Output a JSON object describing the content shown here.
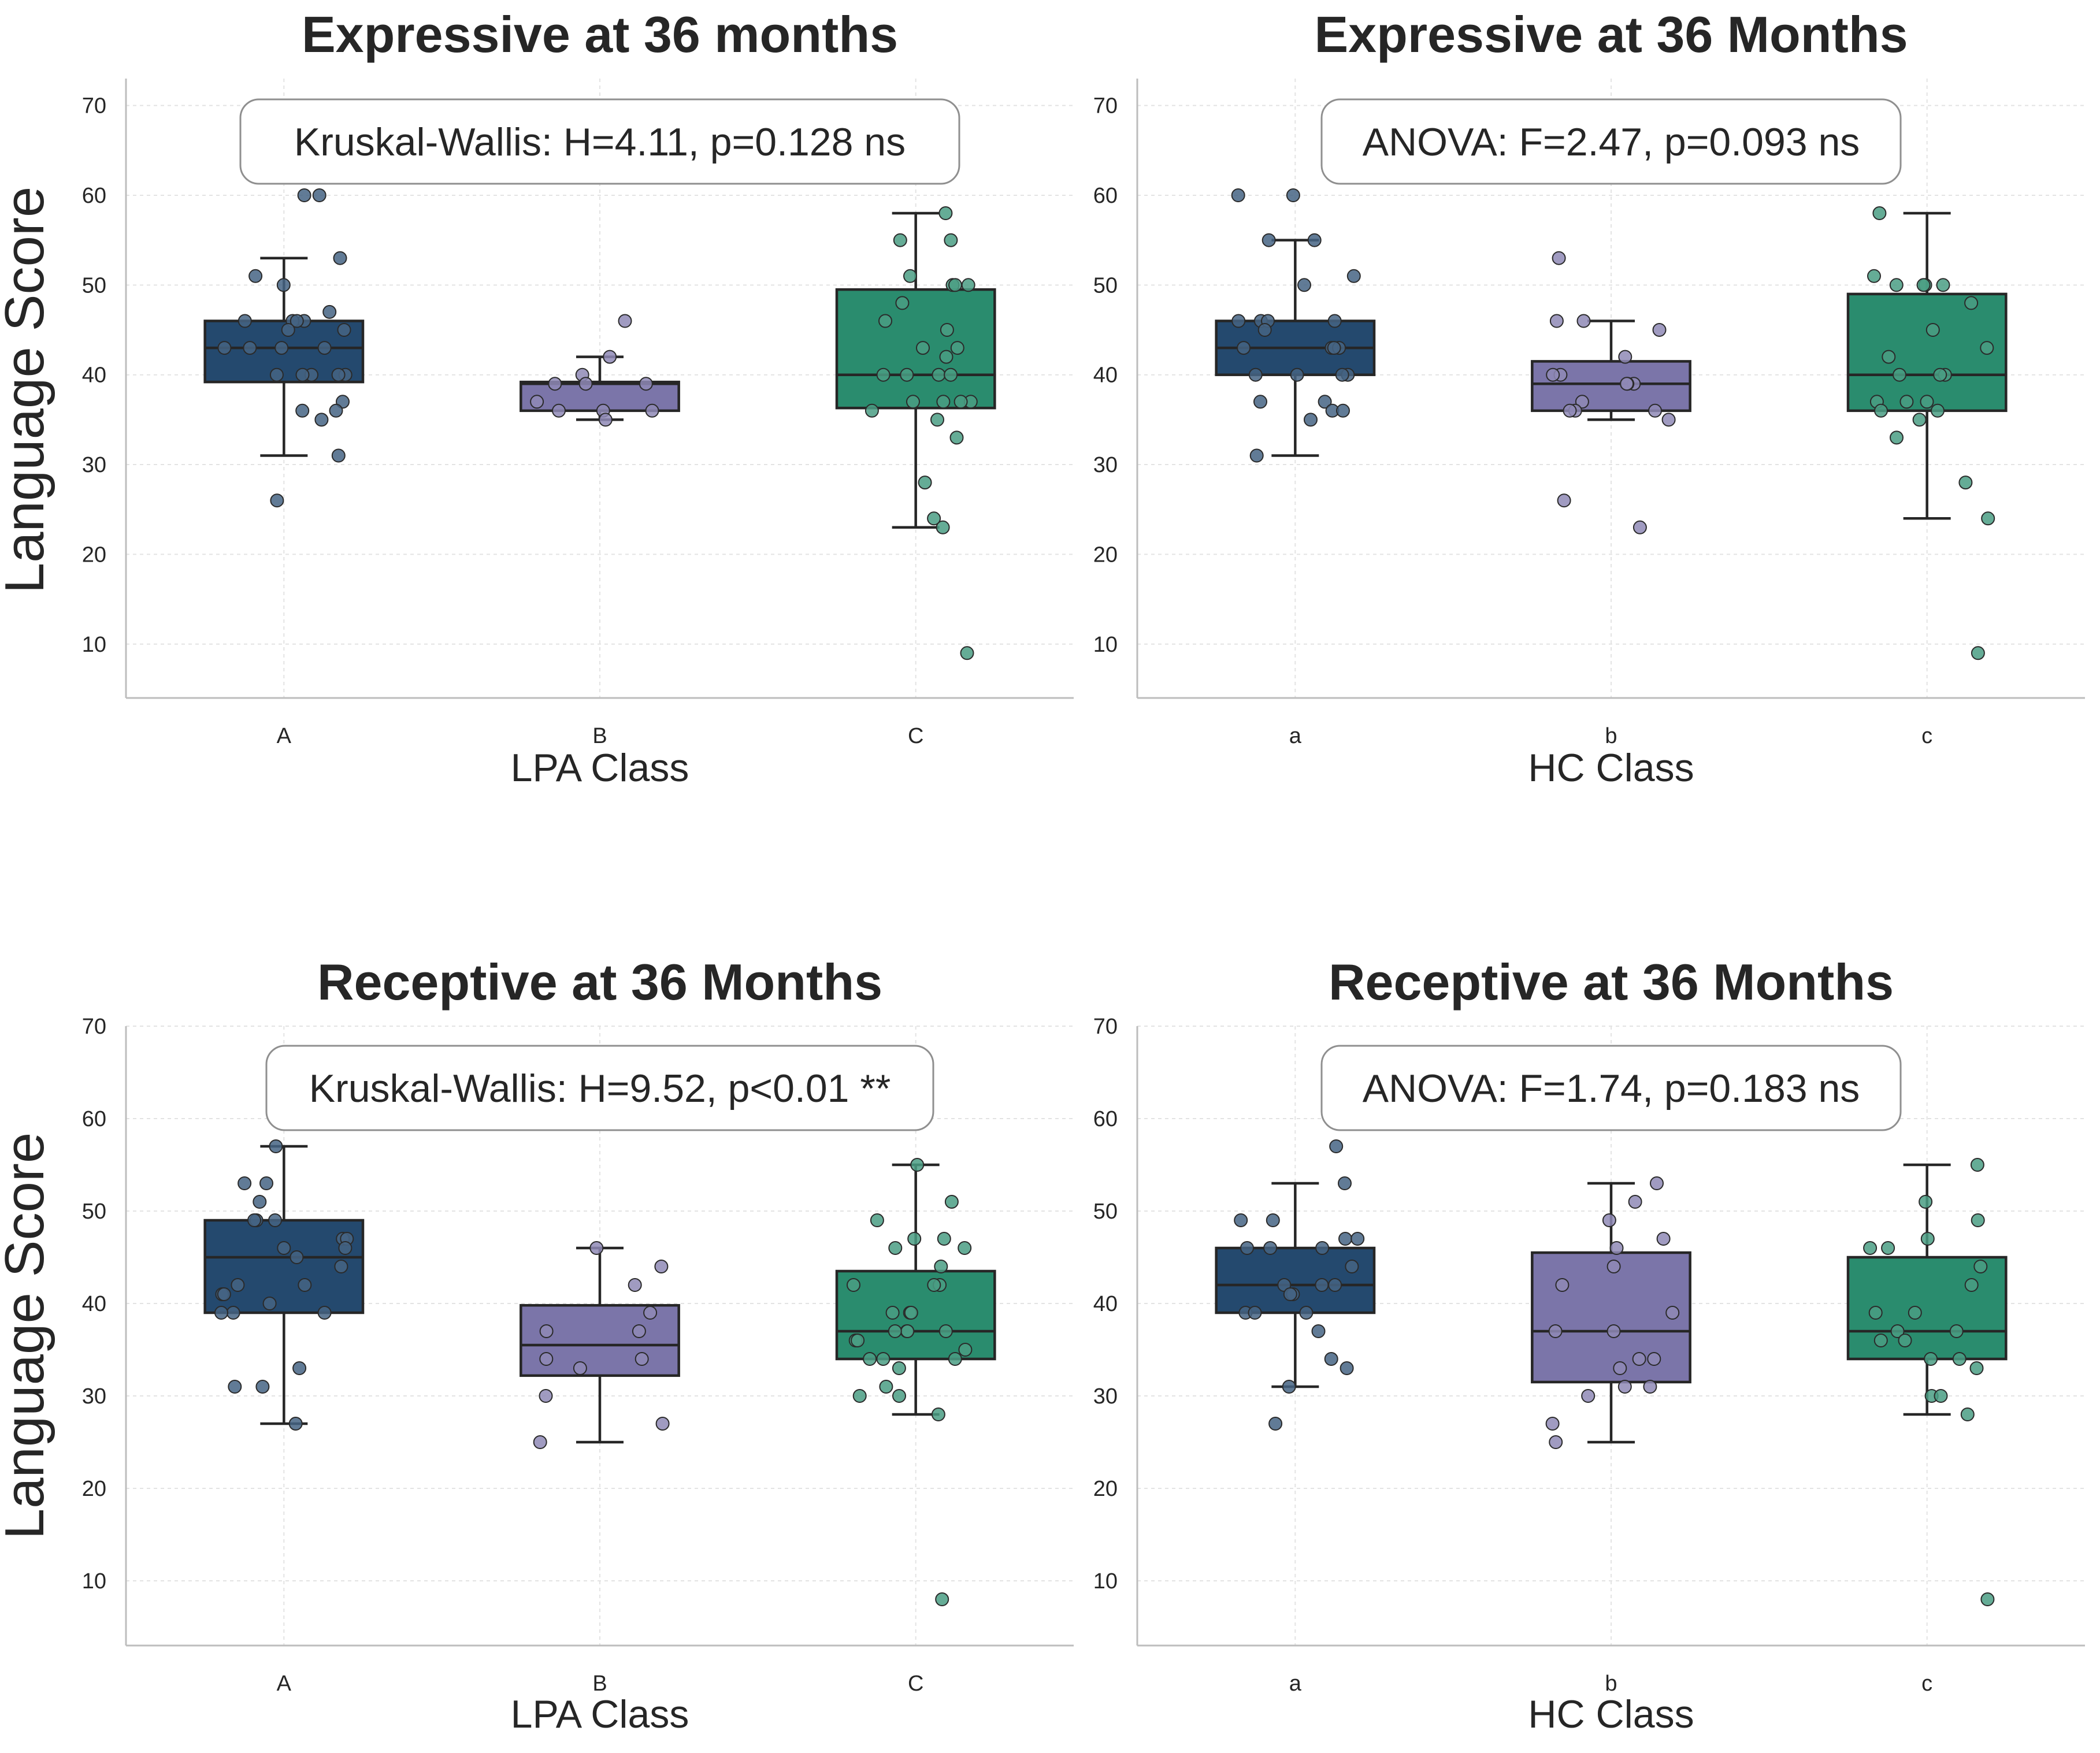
{
  "figure": {
    "ylabel_shared": "Language Score"
  },
  "chart_data": [
    {
      "type": "box",
      "title": "Expressive at 36 months",
      "xlabel": "LPA Class",
      "ylabel": "Language Score",
      "categories": [
        "A",
        "B",
        "C"
      ],
      "yticks": [
        10,
        20,
        30,
        40,
        50,
        60,
        70
      ],
      "ylim": [
        4,
        73
      ],
      "grid": true,
      "stat_text": "Kruskal-Wallis: H=4.11, p=0.128 ns",
      "colors": [
        "#24496e",
        "#7b75a9",
        "#2a8c6e"
      ],
      "boxes": [
        {
          "category": "A",
          "whisker_low": 31,
          "q1": 39.2,
          "median": 43,
          "q3": 46,
          "whisker_high": 53
        },
        {
          "category": "B",
          "whisker_low": 35,
          "q1": 36,
          "median": 39,
          "q3": 39.2,
          "whisker_high": 42
        },
        {
          "category": "C",
          "whisker_low": 23,
          "q1": 36.3,
          "median": 40,
          "q3": 49.5,
          "whisker_high": 58
        }
      ],
      "points": [
        {
          "category": "A",
          "values": [
            60,
            60,
            53,
            51,
            50,
            47,
            46,
            46,
            46,
            46,
            45,
            45,
            43,
            43,
            43,
            43,
            40,
            40,
            40,
            40,
            40,
            37,
            36,
            36,
            35,
            31,
            26
          ]
        },
        {
          "category": "B",
          "values": [
            46,
            42,
            40,
            39,
            39,
            39,
            37,
            36,
            36,
            36,
            35
          ]
        },
        {
          "category": "C",
          "values": [
            58,
            55,
            55,
            51,
            50,
            50,
            50,
            48,
            46,
            45,
            43,
            43,
            42,
            40,
            40,
            40,
            40,
            37,
            37,
            37,
            37,
            36,
            35,
            33,
            28,
            24,
            23,
            9
          ]
        }
      ]
    },
    {
      "type": "box",
      "title": "Expressive at 36 Months",
      "xlabel": "HC Class",
      "ylabel": "",
      "categories": [
        "a",
        "b",
        "c"
      ],
      "yticks": [
        10,
        20,
        30,
        40,
        50,
        60,
        70
      ],
      "ylim": [
        4,
        73
      ],
      "grid": true,
      "stat_text": "ANOVA: F=2.47, p=0.093 ns",
      "colors": [
        "#24496e",
        "#7b75a9",
        "#2a8c6e"
      ],
      "boxes": [
        {
          "category": "a",
          "whisker_low": 31,
          "q1": 40,
          "median": 43,
          "q3": 46,
          "whisker_high": 55
        },
        {
          "category": "b",
          "whisker_low": 35,
          "q1": 36,
          "median": 39,
          "q3": 41.5,
          "whisker_high": 46
        },
        {
          "category": "c",
          "whisker_low": 24,
          "q1": 36,
          "median": 40,
          "q3": 49,
          "whisker_high": 58
        }
      ],
      "points": [
        {
          "category": "a",
          "values": [
            60,
            60,
            55,
            55,
            51,
            50,
            46,
            46,
            46,
            46,
            45,
            43,
            43,
            43,
            43,
            40,
            40,
            40,
            40,
            37,
            37,
            36,
            36,
            35,
            31
          ]
        },
        {
          "category": "b",
          "values": [
            53,
            46,
            46,
            45,
            42,
            40,
            40,
            39,
            39,
            39,
            37,
            36,
            36,
            36,
            35,
            26,
            23
          ]
        },
        {
          "category": "c",
          "values": [
            58,
            51,
            50,
            50,
            50,
            50,
            48,
            45,
            43,
            42,
            40,
            40,
            40,
            37,
            37,
            37,
            36,
            36,
            35,
            33,
            28,
            24,
            9
          ]
        }
      ]
    },
    {
      "type": "box",
      "title": "Receptive at 36 Months",
      "xlabel": "LPA Class",
      "ylabel": "Language Score",
      "categories": [
        "A",
        "B",
        "C"
      ],
      "yticks": [
        10,
        20,
        30,
        40,
        50,
        60,
        70
      ],
      "ylim": [
        3,
        70
      ],
      "grid": true,
      "stat_text": "Kruskal-Wallis: H=9.52, p<0.01 **",
      "colors": [
        "#24496e",
        "#7b75a9",
        "#2a8c6e"
      ],
      "boxes": [
        {
          "category": "A",
          "whisker_low": 27,
          "q1": 39,
          "median": 45,
          "q3": 49,
          "whisker_high": 57
        },
        {
          "category": "B",
          "whisker_low": 25,
          "q1": 32.2,
          "median": 35.5,
          "q3": 39.8,
          "whisker_high": 46
        },
        {
          "category": "C",
          "whisker_low": 28,
          "q1": 34,
          "median": 37,
          "q3": 43.5,
          "whisker_high": 55
        }
      ],
      "points": [
        {
          "category": "A",
          "values": [
            57,
            53,
            53,
            51,
            49,
            49,
            49,
            47,
            47,
            46,
            46,
            45,
            44,
            42,
            42,
            41,
            41,
            40,
            39,
            39,
            39,
            33,
            31,
            31,
            27
          ]
        },
        {
          "category": "B",
          "values": [
            46,
            44,
            42,
            39,
            37,
            37,
            34,
            34,
            33,
            30,
            27,
            25
          ]
        },
        {
          "category": "C",
          "values": [
            55,
            51,
            49,
            47,
            47,
            46,
            46,
            44,
            42,
            42,
            42,
            39,
            39,
            39,
            37,
            37,
            37,
            37,
            36,
            36,
            35,
            34,
            34,
            34,
            33,
            31,
            30,
            30,
            28,
            8
          ]
        }
      ]
    },
    {
      "type": "box",
      "title": "Receptive at 36 Months",
      "xlabel": "HC Class",
      "ylabel": "",
      "categories": [
        "a",
        "b",
        "c"
      ],
      "yticks": [
        10,
        20,
        30,
        40,
        50,
        60,
        70
      ],
      "ylim": [
        3,
        70
      ],
      "grid": true,
      "stat_text": "ANOVA: F=1.74, p=0.183 ns",
      "colors": [
        "#24496e",
        "#7b75a9",
        "#2a8c6e"
      ],
      "boxes": [
        {
          "category": "a",
          "whisker_low": 31,
          "q1": 39,
          "median": 42,
          "q3": 46,
          "whisker_high": 53
        },
        {
          "category": "b",
          "whisker_low": 25,
          "q1": 31.5,
          "median": 37,
          "q3": 45.5,
          "whisker_high": 53
        },
        {
          "category": "c",
          "whisker_low": 28,
          "q1": 34,
          "median": 37,
          "q3": 45,
          "whisker_high": 55
        }
      ],
      "points": [
        {
          "category": "a",
          "values": [
            57,
            53,
            49,
            49,
            47,
            47,
            46,
            46,
            46,
            44,
            42,
            42,
            42,
            41,
            41,
            39,
            39,
            39,
            37,
            34,
            33,
            31,
            27
          ]
        },
        {
          "category": "b",
          "values": [
            53,
            51,
            49,
            47,
            46,
            44,
            42,
            39,
            37,
            37,
            34,
            34,
            33,
            31,
            31,
            30,
            27,
            25
          ]
        },
        {
          "category": "c",
          "values": [
            55,
            51,
            49,
            47,
            46,
            46,
            44,
            42,
            39,
            39,
            37,
            37,
            36,
            36,
            34,
            34,
            33,
            30,
            30,
            28,
            8
          ]
        }
      ]
    }
  ]
}
